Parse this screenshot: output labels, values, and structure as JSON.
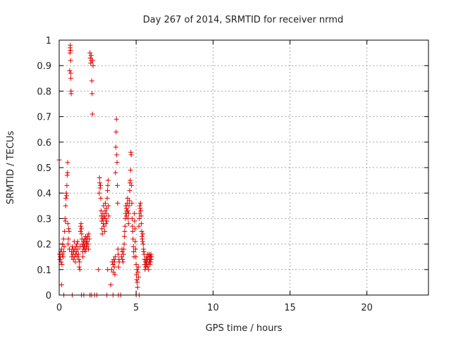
{
  "chart_data": {
    "type": "scatter",
    "title": "Day 267 of 2014, SRMTID for receiver nrmd",
    "xlabel": "GPS time / hours",
    "ylabel": "SRMTID / TECUs",
    "xlim": [
      0,
      24
    ],
    "ylim": [
      0,
      1
    ],
    "xticks": [
      0,
      5,
      10,
      15,
      20
    ],
    "xtick_labels": [
      "0",
      "5",
      "10",
      "15",
      "20"
    ],
    "yticks": [
      0,
      0.1,
      0.2,
      0.3,
      0.4,
      0.5,
      0.6,
      0.7,
      0.8,
      0.9,
      1
    ],
    "ytick_labels": [
      "0",
      "0.1",
      "0.2",
      "0.3",
      "0.4",
      "0.5",
      "0.6",
      "0.7",
      "0.8",
      "0.9",
      "1"
    ],
    "grid": true,
    "marker": "+",
    "color": "#e00000",
    "series": [
      {
        "points": [
          [
            0.0,
            0.53
          ],
          [
            0.02,
            0.16
          ],
          [
            0.05,
            0.14
          ],
          [
            0.08,
            0.15
          ],
          [
            0.1,
            0.17
          ],
          [
            0.12,
            0.13
          ],
          [
            0.15,
            0.18
          ],
          [
            0.18,
            0.12
          ],
          [
            0.2,
            0.16
          ],
          [
            0.22,
            0.2
          ],
          [
            0.25,
            0.15
          ],
          [
            0.28,
            0.22
          ],
          [
            0.3,
            0.17
          ],
          [
            0.32,
            0.19
          ],
          [
            0.15,
            0.04
          ],
          [
            0.3,
            0.0
          ],
          [
            0.35,
            0.25
          ],
          [
            0.38,
            0.3
          ],
          [
            0.4,
            0.29
          ],
          [
            0.42,
            0.35
          ],
          [
            0.44,
            0.38
          ],
          [
            0.46,
            0.4
          ],
          [
            0.48,
            0.39
          ],
          [
            0.5,
            0.43
          ],
          [
            0.52,
            0.47
          ],
          [
            0.54,
            0.48
          ],
          [
            0.55,
            0.52
          ],
          [
            0.56,
            0.28
          ],
          [
            0.58,
            0.2
          ],
          [
            0.6,
            0.22
          ],
          [
            0.62,
            0.26
          ],
          [
            0.64,
            0.25
          ],
          [
            0.66,
            0.18
          ],
          [
            0.68,
            0.88
          ],
          [
            0.7,
            0.95
          ],
          [
            0.71,
            0.97
          ],
          [
            0.72,
            0.98
          ],
          [
            0.73,
            0.96
          ],
          [
            0.74,
            0.92
          ],
          [
            0.75,
            0.87
          ],
          [
            0.76,
            0.85
          ],
          [
            0.77,
            0.8
          ],
          [
            0.78,
            0.79
          ],
          [
            0.8,
            0.17
          ],
          [
            0.82,
            0.15
          ],
          [
            0.85,
            0.19
          ],
          [
            0.88,
            0.16
          ],
          [
            0.9,
            0.18
          ],
          [
            0.92,
            0.14
          ],
          [
            0.95,
            0.17
          ],
          [
            0.98,
            0.21
          ],
          [
            1.0,
            0.15
          ],
          [
            1.02,
            0.18
          ],
          [
            1.05,
            0.13
          ],
          [
            1.08,
            0.16
          ],
          [
            1.1,
            0.19
          ],
          [
            1.12,
            0.17
          ],
          [
            1.15,
            0.2
          ],
          [
            1.18,
            0.15
          ],
          [
            1.2,
            0.21
          ],
          [
            1.22,
            0.18
          ],
          [
            1.25,
            0.16
          ],
          [
            1.28,
            0.14
          ],
          [
            1.3,
            0.11
          ],
          [
            1.32,
            0.13
          ],
          [
            1.34,
            0.1
          ],
          [
            1.36,
            0.19
          ],
          [
            1.38,
            0.25
          ],
          [
            1.4,
            0.27
          ],
          [
            1.42,
            0.28
          ],
          [
            1.44,
            0.26
          ],
          [
            1.46,
            0.24
          ],
          [
            1.48,
            0.22
          ],
          [
            1.5,
            0.2
          ],
          [
            1.52,
            0.17
          ],
          [
            1.54,
            0.15
          ],
          [
            1.56,
            0.19
          ],
          [
            1.58,
            0.21
          ],
          [
            1.6,
            0.18
          ],
          [
            1.62,
            0.2
          ],
          [
            1.64,
            0.22
          ],
          [
            1.66,
            0.19
          ],
          [
            1.68,
            0.17
          ],
          [
            1.7,
            0.21
          ],
          [
            1.72,
            0.23
          ],
          [
            1.74,
            0.18
          ],
          [
            1.76,
            0.2
          ],
          [
            1.78,
            0.22
          ],
          [
            1.8,
            0.19
          ],
          [
            1.82,
            0.21
          ],
          [
            1.85,
            0.23
          ],
          [
            1.88,
            0.2
          ],
          [
            1.9,
            0.18
          ],
          [
            1.92,
            0.24
          ],
          [
            1.95,
            0.22
          ],
          [
            0.85,
            0.0
          ],
          [
            1.45,
            0.0
          ],
          [
            1.6,
            0.0
          ],
          [
            2.0,
            0.95
          ],
          [
            2.02,
            0.93
          ],
          [
            2.05,
            0.91
          ],
          [
            2.08,
            0.94
          ],
          [
            2.1,
            0.92
          ],
          [
            2.12,
            0.84
          ],
          [
            2.14,
            0.79
          ],
          [
            2.16,
            0.71
          ],
          [
            2.18,
            0.92
          ],
          [
            2.2,
            0.9
          ],
          [
            2.0,
            0.0
          ],
          [
            2.1,
            0.0
          ],
          [
            2.3,
            0.0
          ],
          [
            2.45,
            0.0
          ],
          [
            2.55,
            0.1
          ],
          [
            2.6,
            0.4
          ],
          [
            2.62,
            0.46
          ],
          [
            2.64,
            0.44
          ],
          [
            2.66,
            0.42
          ],
          [
            2.68,
            0.43
          ],
          [
            2.7,
            0.38
          ],
          [
            2.72,
            0.33
          ],
          [
            2.74,
            0.31
          ],
          [
            2.76,
            0.29
          ],
          [
            2.78,
            0.26
          ],
          [
            2.8,
            0.24
          ],
          [
            2.82,
            0.3
          ],
          [
            2.84,
            0.32
          ],
          [
            2.86,
            0.28
          ],
          [
            2.88,
            0.35
          ],
          [
            2.9,
            0.3
          ],
          [
            2.92,
            0.27
          ],
          [
            2.94,
            0.31
          ],
          [
            2.96,
            0.25
          ],
          [
            2.98,
            0.33
          ],
          [
            3.0,
            0.36
          ],
          [
            3.02,
            0.3
          ],
          [
            3.04,
            0.28
          ],
          [
            3.06,
            0.32
          ],
          [
            3.08,
            0.34
          ],
          [
            3.1,
            0.29
          ],
          [
            3.12,
            0.38
          ],
          [
            3.14,
            0.41
          ],
          [
            3.16,
            0.43
          ],
          [
            3.18,
            0.45
          ],
          [
            3.2,
            0.35
          ],
          [
            3.22,
            0.31
          ],
          [
            3.1,
            0.0
          ],
          [
            3.15,
            0.1
          ],
          [
            3.35,
            0.04
          ],
          [
            3.4,
            0.1
          ],
          [
            3.45,
            0.13
          ],
          [
            3.5,
            0.12
          ],
          [
            3.52,
            0.09
          ],
          [
            3.55,
            0.14
          ],
          [
            3.58,
            0.11
          ],
          [
            3.6,
            0.13
          ],
          [
            3.62,
            0.08
          ],
          [
            3.64,
            0.15
          ],
          [
            3.66,
            0.48
          ],
          [
            3.68,
            0.58
          ],
          [
            3.7,
            0.64
          ],
          [
            3.72,
            0.69
          ],
          [
            3.74,
            0.55
          ],
          [
            3.76,
            0.52
          ],
          [
            3.78,
            0.43
          ],
          [
            3.8,
            0.36
          ],
          [
            3.82,
            0.18
          ],
          [
            3.84,
            0.16
          ],
          [
            3.86,
            0.11
          ],
          [
            3.88,
            0.14
          ],
          [
            3.9,
            0.13
          ],
          [
            3.5,
            0.0
          ],
          [
            3.85,
            0.0
          ],
          [
            4.0,
            0.0
          ],
          [
            4.05,
            0.15
          ],
          [
            4.08,
            0.18
          ],
          [
            4.1,
            0.17
          ],
          [
            4.12,
            0.14
          ],
          [
            4.15,
            0.13
          ],
          [
            4.18,
            0.16
          ],
          [
            4.2,
            0.18
          ],
          [
            4.22,
            0.2
          ],
          [
            4.24,
            0.23
          ],
          [
            4.26,
            0.25
          ],
          [
            4.28,
            0.27
          ],
          [
            4.3,
            0.3
          ],
          [
            4.32,
            0.32
          ],
          [
            4.34,
            0.35
          ],
          [
            4.36,
            0.34
          ],
          [
            4.38,
            0.31
          ],
          [
            4.4,
            0.33
          ],
          [
            4.42,
            0.36
          ],
          [
            4.44,
            0.38
          ],
          [
            4.46,
            0.33
          ],
          [
            4.48,
            0.3
          ],
          [
            4.5,
            0.28
          ],
          [
            4.52,
            0.32
          ],
          [
            4.54,
            0.35
          ],
          [
            4.56,
            0.37
          ],
          [
            4.58,
            0.41
          ],
          [
            4.6,
            0.44
          ],
          [
            4.62,
            0.45
          ],
          [
            4.64,
            0.49
          ],
          [
            4.66,
            0.56
          ],
          [
            4.68,
            0.55
          ],
          [
            4.7,
            0.43
          ],
          [
            4.72,
            0.36
          ],
          [
            4.74,
            0.3
          ],
          [
            4.76,
            0.27
          ],
          [
            4.78,
            0.25
          ],
          [
            4.8,
            0.22
          ],
          [
            4.82,
            0.19
          ],
          [
            4.84,
            0.17
          ],
          [
            4.86,
            0.15
          ],
          [
            4.88,
            0.32
          ],
          [
            4.9,
            0.29
          ],
          [
            4.92,
            0.26
          ],
          [
            4.94,
            0.21
          ],
          [
            4.96,
            0.18
          ],
          [
            4.98,
            0.15
          ],
          [
            5.0,
            0.12
          ],
          [
            5.02,
            0.08
          ],
          [
            5.04,
            0.06
          ],
          [
            5.06,
            0.1
          ],
          [
            5.08,
            0.05
          ],
          [
            5.1,
            0.03
          ],
          [
            5.12,
            0.09
          ],
          [
            5.14,
            0.11
          ],
          [
            5.16,
            0.07
          ],
          [
            5.18,
            0.27
          ],
          [
            5.2,
            0.3
          ],
          [
            5.22,
            0.32
          ],
          [
            5.24,
            0.35
          ],
          [
            5.26,
            0.34
          ],
          [
            5.28,
            0.36
          ],
          [
            5.3,
            0.33
          ],
          [
            5.32,
            0.31
          ],
          [
            5.34,
            0.28
          ],
          [
            5.36,
            0.25
          ],
          [
            5.38,
            0.23
          ],
          [
            5.4,
            0.22
          ],
          [
            5.42,
            0.21
          ],
          [
            5.44,
            0.24
          ],
          [
            5.46,
            0.2
          ],
          [
            5.48,
            0.18
          ],
          [
            5.5,
            0.17
          ],
          [
            5.52,
            0.16
          ],
          [
            5.54,
            0.14
          ],
          [
            5.56,
            0.12
          ],
          [
            5.58,
            0.1
          ],
          [
            5.6,
            0.13
          ],
          [
            5.62,
            0.11
          ],
          [
            5.64,
            0.14
          ],
          [
            5.66,
            0.12
          ],
          [
            5.68,
            0.15
          ],
          [
            5.7,
            0.13
          ],
          [
            5.72,
            0.11
          ],
          [
            5.74,
            0.14
          ],
          [
            5.76,
            0.16
          ],
          [
            5.78,
            0.12
          ],
          [
            5.8,
            0.1
          ],
          [
            5.82,
            0.15
          ],
          [
            5.84,
            0.13
          ],
          [
            5.86,
            0.16
          ],
          [
            5.88,
            0.14
          ],
          [
            5.9,
            0.12
          ],
          [
            5.92,
            0.15
          ],
          [
            5.94,
            0.13
          ],
          [
            5.96,
            0.16
          ],
          [
            5.98,
            0.14
          ],
          [
            6.0,
            0.15
          ],
          [
            5.0,
            0.0
          ],
          [
            5.2,
            0.0
          ]
        ]
      }
    ]
  }
}
